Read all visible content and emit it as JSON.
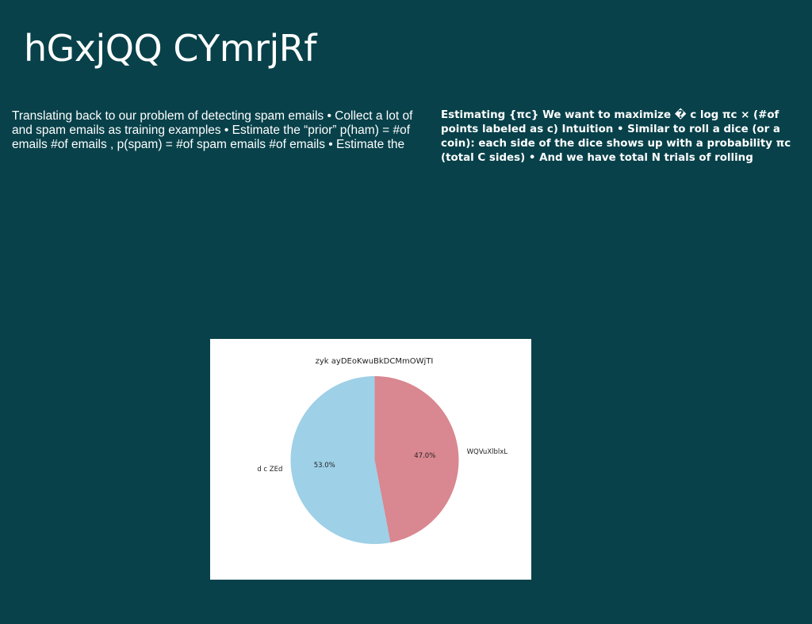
{
  "slide": {
    "title": "hGxjQQ CYmrjRf",
    "left_text": "Translating back to our problem of detecting spam emails • Collect a lot of and spam emails as training examples • Estimate the “prior” p(ham) = #of emails #of emails , p(spam) = #of spam emails #of emails • Estimate the",
    "right_text": "Estimating {πc} We want to maximize � c log πc × (#of points labeled as c) Intuition • Similar to roll a dice (or a coin): each side of the dice shows up with a probability πc (total C sides) • And we have total N trials of rolling"
  },
  "chart_data": {
    "type": "pie",
    "title": "zyk ayDEoKwuBkDCMmOWjTI",
    "slices": [
      {
        "label": "WQVuXlblxL",
        "value": 47.0,
        "pct_label": "47.0%",
        "color": "#d98790"
      },
      {
        "label": "d c ZEd",
        "value": 53.0,
        "pct_label": "53.0%",
        "color": "#9ed0e7"
      }
    ],
    "start_angle_deg": 90,
    "direction": "clockwise",
    "legend": "none"
  }
}
